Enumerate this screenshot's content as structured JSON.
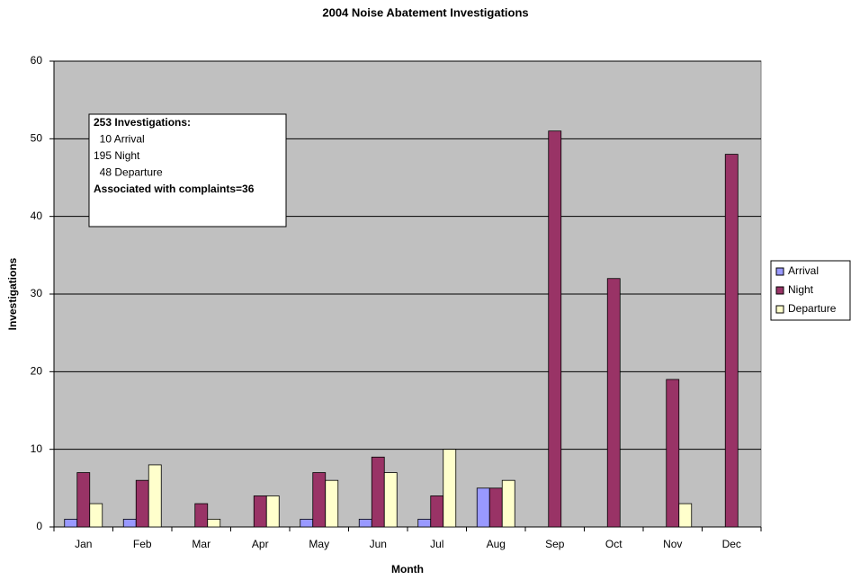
{
  "chart_data": {
    "type": "bar",
    "title": "2004 Noise Abatement Investigations",
    "x_label": "Month",
    "y_label": "Investigations",
    "categories": [
      "Jan",
      "Feb",
      "Mar",
      "Apr",
      "May",
      "Jun",
      "Jul",
      "Aug",
      "Sep",
      "Oct",
      "Nov",
      "Dec"
    ],
    "series": [
      {
        "name": "Arrival",
        "color": "#9999ff",
        "values": [
          1,
          1,
          0,
          0,
          1,
          1,
          1,
          5,
          0,
          0,
          0,
          0
        ]
      },
      {
        "name": "Night",
        "color": "#993366",
        "values": [
          7,
          6,
          3,
          4,
          7,
          9,
          4,
          5,
          51,
          32,
          19,
          48
        ]
      },
      {
        "name": "Departure",
        "color": "#ffffcc",
        "values": [
          3,
          8,
          1,
          4,
          6,
          7,
          10,
          6,
          0,
          0,
          3,
          0
        ]
      }
    ],
    "ylim": [
      0,
      60
    ],
    "yticks": [
      0,
      10,
      20,
      30,
      40,
      50,
      60
    ],
    "grid": true,
    "legend": "right",
    "annotation": [
      "253 Investigations:",
      "  10 Arrival",
      "195 Night",
      "  48 Departure",
      "Associated with complaints=36"
    ]
  }
}
